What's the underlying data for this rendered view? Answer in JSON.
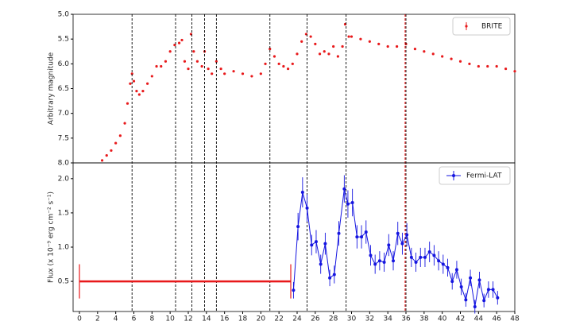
{
  "chart_data": [
    {
      "type": "scatter",
      "ylabel": "Arbitrary magnitude",
      "xlim": [
        -0.7,
        48
      ],
      "ylim": [
        5.0,
        8.0
      ],
      "inverted": true,
      "yticks": [
        {
          "value": 5.0,
          "label": "5.0"
        },
        5.5,
        {
          "value": 6.0,
          "label": "6.0"
        },
        6.5,
        {
          "value": 7.0,
          "label": "7.0"
        },
        7.5,
        {
          "value": 8.0,
          "label": "8.0"
        }
      ],
      "legend": "upper right",
      "vlines": [
        5.8,
        10.6,
        12.4,
        13.8,
        15.1,
        21,
        25.1,
        29.4,
        36.0
      ],
      "vline_color": "black",
      "highlight_vline": 35.9,
      "highlight_color": "red",
      "x": [
        2.5,
        3,
        3.5,
        4,
        4.5,
        5,
        5.3,
        5.6,
        5.8,
        6,
        6.3,
        6.6,
        7,
        7.5,
        8,
        8.5,
        9,
        9.5,
        10,
        10.5,
        11,
        11.3,
        11.6,
        12,
        12.3,
        12.6,
        13,
        13.5,
        13.8,
        14.2,
        14.6,
        15.1,
        15.6,
        16,
        17,
        18,
        19,
        20,
        20.5,
        21,
        21.5,
        22,
        22.5,
        23,
        23.5,
        24,
        24.5,
        25,
        25.5,
        26,
        26.5,
        27,
        27.5,
        28,
        28.5,
        29,
        29.3,
        29.7,
        30,
        31,
        32,
        33,
        34,
        35,
        36,
        37,
        38,
        39,
        40,
        41,
        42,
        43,
        44,
        45,
        46,
        47,
        48
      ],
      "series": [
        {
          "name": "BRITE",
          "color": "#e8191b",
          "values": [
            7.95,
            7.85,
            7.75,
            7.6,
            7.45,
            7.2,
            6.8,
            6.4,
            6.2,
            6.35,
            6.55,
            6.62,
            6.55,
            6.4,
            6.25,
            6.05,
            6.05,
            5.95,
            5.75,
            5.62,
            5.58,
            5.52,
            5.95,
            6.1,
            5.4,
            5.75,
            5.95,
            6.05,
            5.75,
            6.1,
            6.2,
            5.95,
            6.1,
            6.2,
            6.15,
            6.2,
            6.25,
            6.2,
            6.0,
            5.7,
            5.85,
            6.0,
            6.05,
            6.1,
            6.0,
            5.8,
            5.55,
            5.4,
            5.45,
            5.6,
            5.8,
            5.75,
            5.8,
            5.65,
            5.85,
            5.65,
            5.2,
            5.45,
            5.45,
            5.5,
            5.55,
            5.6,
            5.65,
            5.65,
            5.6,
            5.7,
            5.75,
            5.8,
            5.85,
            5.9,
            5.95,
            6.0,
            6.05,
            6.05,
            6.05,
            6.1,
            6.15
          ]
        }
      ]
    },
    {
      "type": "errorbar",
      "ylabel": "Flux (x 10⁻⁹ erg cm⁻² s⁻¹)",
      "xlim": [
        -0.7,
        48
      ],
      "ylim": [
        0.06,
        2.23
      ],
      "xticks": [
        0,
        2,
        4,
        6,
        8,
        10,
        12,
        14,
        16,
        18,
        20,
        22,
        24,
        26,
        28,
        30,
        32,
        34,
        36,
        38,
        40,
        42,
        44,
        46,
        48
      ],
      "yticks": [
        0.5,
        {
          "value": 1.0,
          "label": "1.0"
        },
        1.5,
        {
          "value": 2.0,
          "label": "2.0"
        }
      ],
      "legend": "upper right",
      "band": {
        "x": [
          0,
          23.3
        ],
        "value": 0.5,
        "error": 0.25,
        "color": "#e8191b"
      },
      "x": [
        23.6,
        24.1,
        24.6,
        25.1,
        25.6,
        26.1,
        26.6,
        27.1,
        27.6,
        28.1,
        28.6,
        29.2,
        29.6,
        30.1,
        30.6,
        31.1,
        31.6,
        32.1,
        32.6,
        33.1,
        33.6,
        34.1,
        34.6,
        35.1,
        35.6,
        36.1,
        36.6,
        37.1,
        37.6,
        38.1,
        38.6,
        39.1,
        39.6,
        40.1,
        40.6,
        41.1,
        41.6,
        42.1,
        42.6,
        43.1,
        43.6,
        44.1,
        44.6,
        45.1,
        45.6,
        46.1
      ],
      "series": [
        {
          "name": "Fermi-LAT",
          "color": "#1515e0",
          "values": [
            0.37,
            1.3,
            1.8,
            1.57,
            1.03,
            1.08,
            0.75,
            1.05,
            0.55,
            0.6,
            1.2,
            1.85,
            1.63,
            1.65,
            1.15,
            1.15,
            1.22,
            0.88,
            0.75,
            0.8,
            0.78,
            1.03,
            0.8,
            1.2,
            1.05,
            1.18,
            0.85,
            0.78,
            0.85,
            0.85,
            0.93,
            0.88,
            0.8,
            0.75,
            0.7,
            0.5,
            0.67,
            0.42,
            0.23,
            0.55,
            0.13,
            0.52,
            0.22,
            0.38,
            0.38,
            0.26
          ],
          "errors": [
            0.12,
            0.2,
            0.22,
            0.2,
            0.15,
            0.17,
            0.14,
            0.16,
            0.12,
            0.13,
            0.18,
            0.2,
            0.2,
            0.2,
            0.17,
            0.17,
            0.17,
            0.15,
            0.14,
            0.14,
            0.14,
            0.16,
            0.14,
            0.17,
            0.16,
            0.17,
            0.14,
            0.14,
            0.14,
            0.14,
            0.15,
            0.15,
            0.14,
            0.14,
            0.13,
            0.12,
            0.13,
            0.12,
            0.1,
            0.12,
            0.1,
            0.12,
            0.1,
            0.12,
            0.12,
            0.1
          ]
        }
      ]
    }
  ]
}
